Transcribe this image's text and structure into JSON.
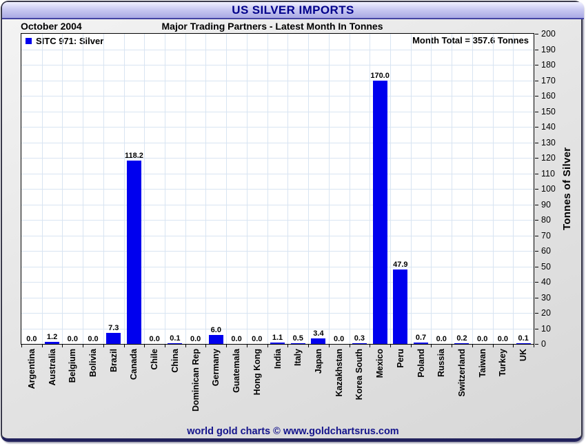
{
  "window": {
    "title": "US SILVER IMPORTS",
    "subtitle_left": "October 2004",
    "subtitle_center": "Major Trading Partners - Latest Month In Tonnes",
    "footer": "world gold charts © www.goldchartsrus.com"
  },
  "colors": {
    "bar": "#0000ee",
    "title_text": "#00008b",
    "footer_text": "#14148c",
    "gridline": "#d8e4f2"
  },
  "chart_data": {
    "type": "bar",
    "title": "US SILVER IMPORTS",
    "subtitle": "Major Trading Partners - Latest Month In Tonnes",
    "period": "October 2004",
    "series_name": "SITC 971: Silver",
    "month_total_label": "Month Total = 357.6 Tonnes",
    "month_total_value": 357.6,
    "ylabel": "Tonnes of Silver",
    "ylim": [
      0,
      200
    ],
    "ytick_step": 10,
    "grid": true,
    "legend_position": "top-left",
    "value_label_decimals": 1,
    "categories": [
      "Argentina",
      "Australia",
      "Belgium",
      "Bolivia",
      "Brazil",
      "Canada",
      "Chile",
      "China",
      "Dominican Rep",
      "Germany",
      "Guatemala",
      "Hong Kong",
      "India",
      "Italy",
      "Japan",
      "Kazakhstan",
      "Korea South",
      "Mexico",
      "Peru",
      "Poland",
      "Russia",
      "Switzerland",
      "Taiwan",
      "Turkey",
      "UK"
    ],
    "values": [
      0.0,
      1.2,
      0.0,
      0.0,
      7.3,
      118.2,
      0.0,
      0.1,
      0.0,
      6.0,
      0.0,
      0.0,
      1.1,
      0.5,
      3.4,
      0.0,
      0.3,
      170.0,
      47.9,
      0.7,
      0.0,
      0.2,
      0.0,
      0.0,
      0.1
    ]
  }
}
